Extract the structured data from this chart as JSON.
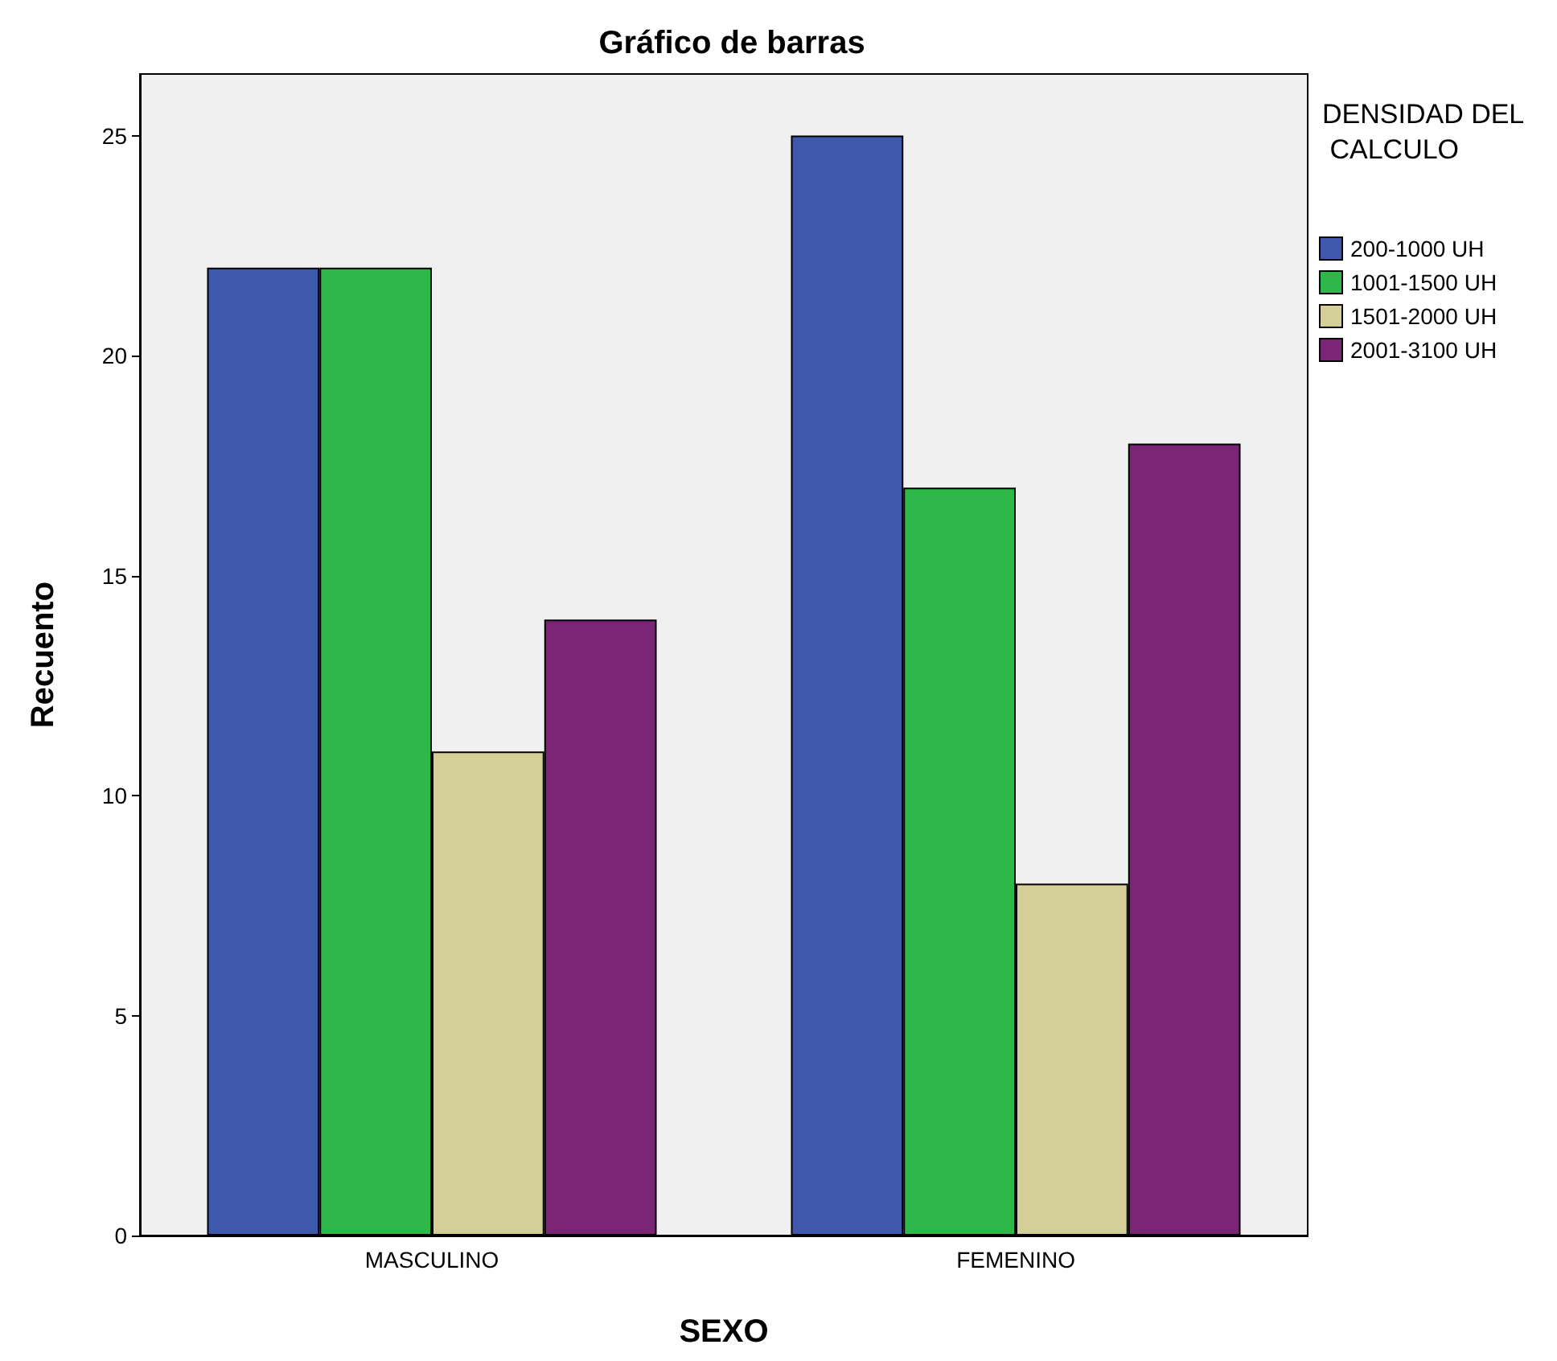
{
  "chart_data": {
    "type": "bar",
    "title": "Gráfico de barras",
    "xlabel": "SEXO",
    "ylabel": "Recuento",
    "legend_title": "DENSIDAD DEL CALCULO",
    "categories": [
      "MASCULINO",
      "FEMENINO"
    ],
    "series": [
      {
        "name": "200-1000 UH",
        "color": "#3e58ab",
        "values": [
          22,
          25
        ]
      },
      {
        "name": "1001-1500 UH",
        "color": "#2fb84a",
        "values": [
          22,
          17
        ]
      },
      {
        "name": "1501-2000 UH",
        "color": "#d4cf98",
        "values": [
          11,
          8
        ]
      },
      {
        "name": "2001-3100 UH",
        "color": "#7b2576",
        "values": [
          14,
          18
        ]
      }
    ],
    "ylim": [
      0,
      26.4
    ],
    "yticks": [
      0,
      5,
      10,
      15,
      20,
      25
    ],
    "grid": false,
    "legend": "top right"
  }
}
